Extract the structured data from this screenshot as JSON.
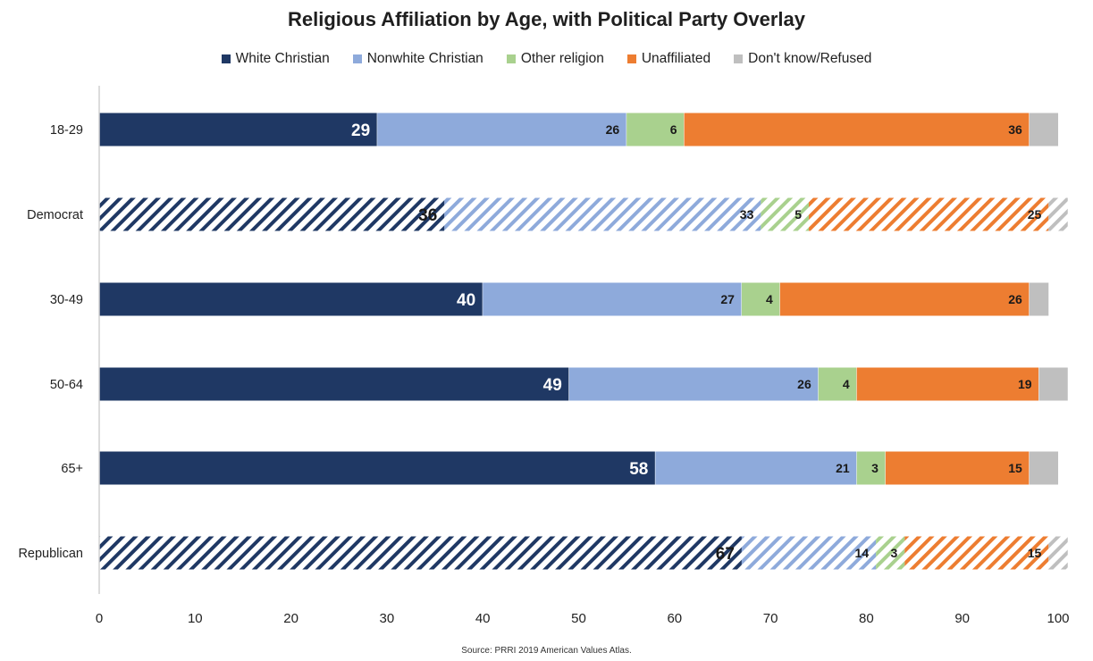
{
  "chart_data": {
    "type": "bar",
    "orientation": "horizontal",
    "stacked": true,
    "title": "Religious Affiliation by Age, with Political Party Overlay",
    "categories": [
      "18-29",
      "Democrat",
      "30-49",
      "50-64",
      "65+",
      "Republican"
    ],
    "hatched_categories": [
      "Democrat",
      "Republican"
    ],
    "series": [
      {
        "name": "White Christian",
        "color": "#1f3864",
        "values": [
          29,
          36,
          40,
          49,
          58,
          67
        ],
        "labels": [
          "29",
          "36",
          "40",
          "49",
          "58",
          "67"
        ]
      },
      {
        "name": "Nonwhite Christian",
        "color": "#8eaadb",
        "values": [
          26,
          33,
          27,
          26,
          21,
          14
        ],
        "labels": [
          "26",
          "33",
          "27",
          "26",
          "21",
          "14"
        ]
      },
      {
        "name": "Other religion",
        "color": "#a9d18e",
        "values": [
          6,
          5,
          4,
          4,
          3,
          3
        ],
        "labels": [
          "6",
          "5",
          "4",
          "4",
          "3",
          "3"
        ]
      },
      {
        "name": "Unaffiliated",
        "color": "#ed7d31",
        "values": [
          36,
          25,
          26,
          19,
          15,
          15
        ],
        "labels": [
          "36",
          "25",
          "26",
          "19",
          "15",
          "15"
        ]
      },
      {
        "name": "Don't know/Refused",
        "color": "#bfbfbf",
        "values": [
          3,
          2,
          2,
          3,
          3,
          2
        ],
        "labels": [
          "",
          "",
          "",
          "",
          "",
          ""
        ]
      }
    ],
    "xlim": [
      0,
      100
    ],
    "xticks": [
      "0",
      "10",
      "20",
      "30",
      "40",
      "50",
      "60",
      "70",
      "80",
      "90",
      "100"
    ],
    "xlabel": "",
    "ylabel": "",
    "legend_position": "top",
    "grid": false
  },
  "source": "Source: PRRI 2019 American Values Atlas."
}
